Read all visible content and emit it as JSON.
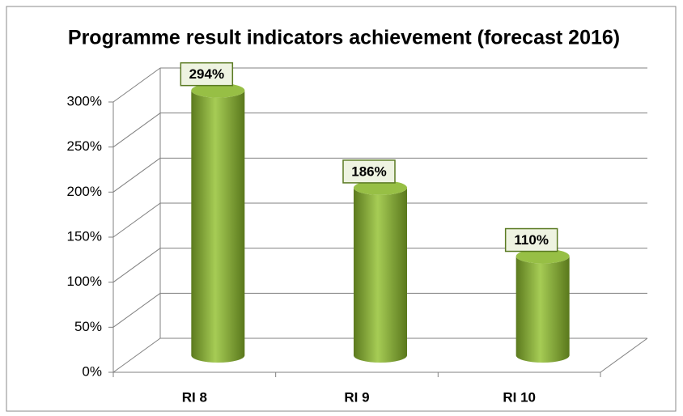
{
  "chart_data": {
    "type": "bar3d",
    "title": "Programme  result indicators achievement (forecast 2016)",
    "categories": [
      "RI 8",
      "RI 9",
      "RI 10"
    ],
    "values": [
      294,
      186,
      110
    ],
    "value_labels": [
      "294%",
      "186%",
      "110%"
    ],
    "color": "#8db53c",
    "ylim": [
      0,
      300
    ],
    "yticks": [
      {
        "value": 0,
        "label": "0%"
      },
      {
        "value": 50,
        "label": "50%"
      },
      {
        "value": 100,
        "label": "100%"
      },
      {
        "value": 150,
        "label": "150%"
      },
      {
        "value": 200,
        "label": "200%"
      },
      {
        "value": 250,
        "label": "250%"
      },
      {
        "value": 300,
        "label": "300%"
      }
    ],
    "grid": true
  }
}
